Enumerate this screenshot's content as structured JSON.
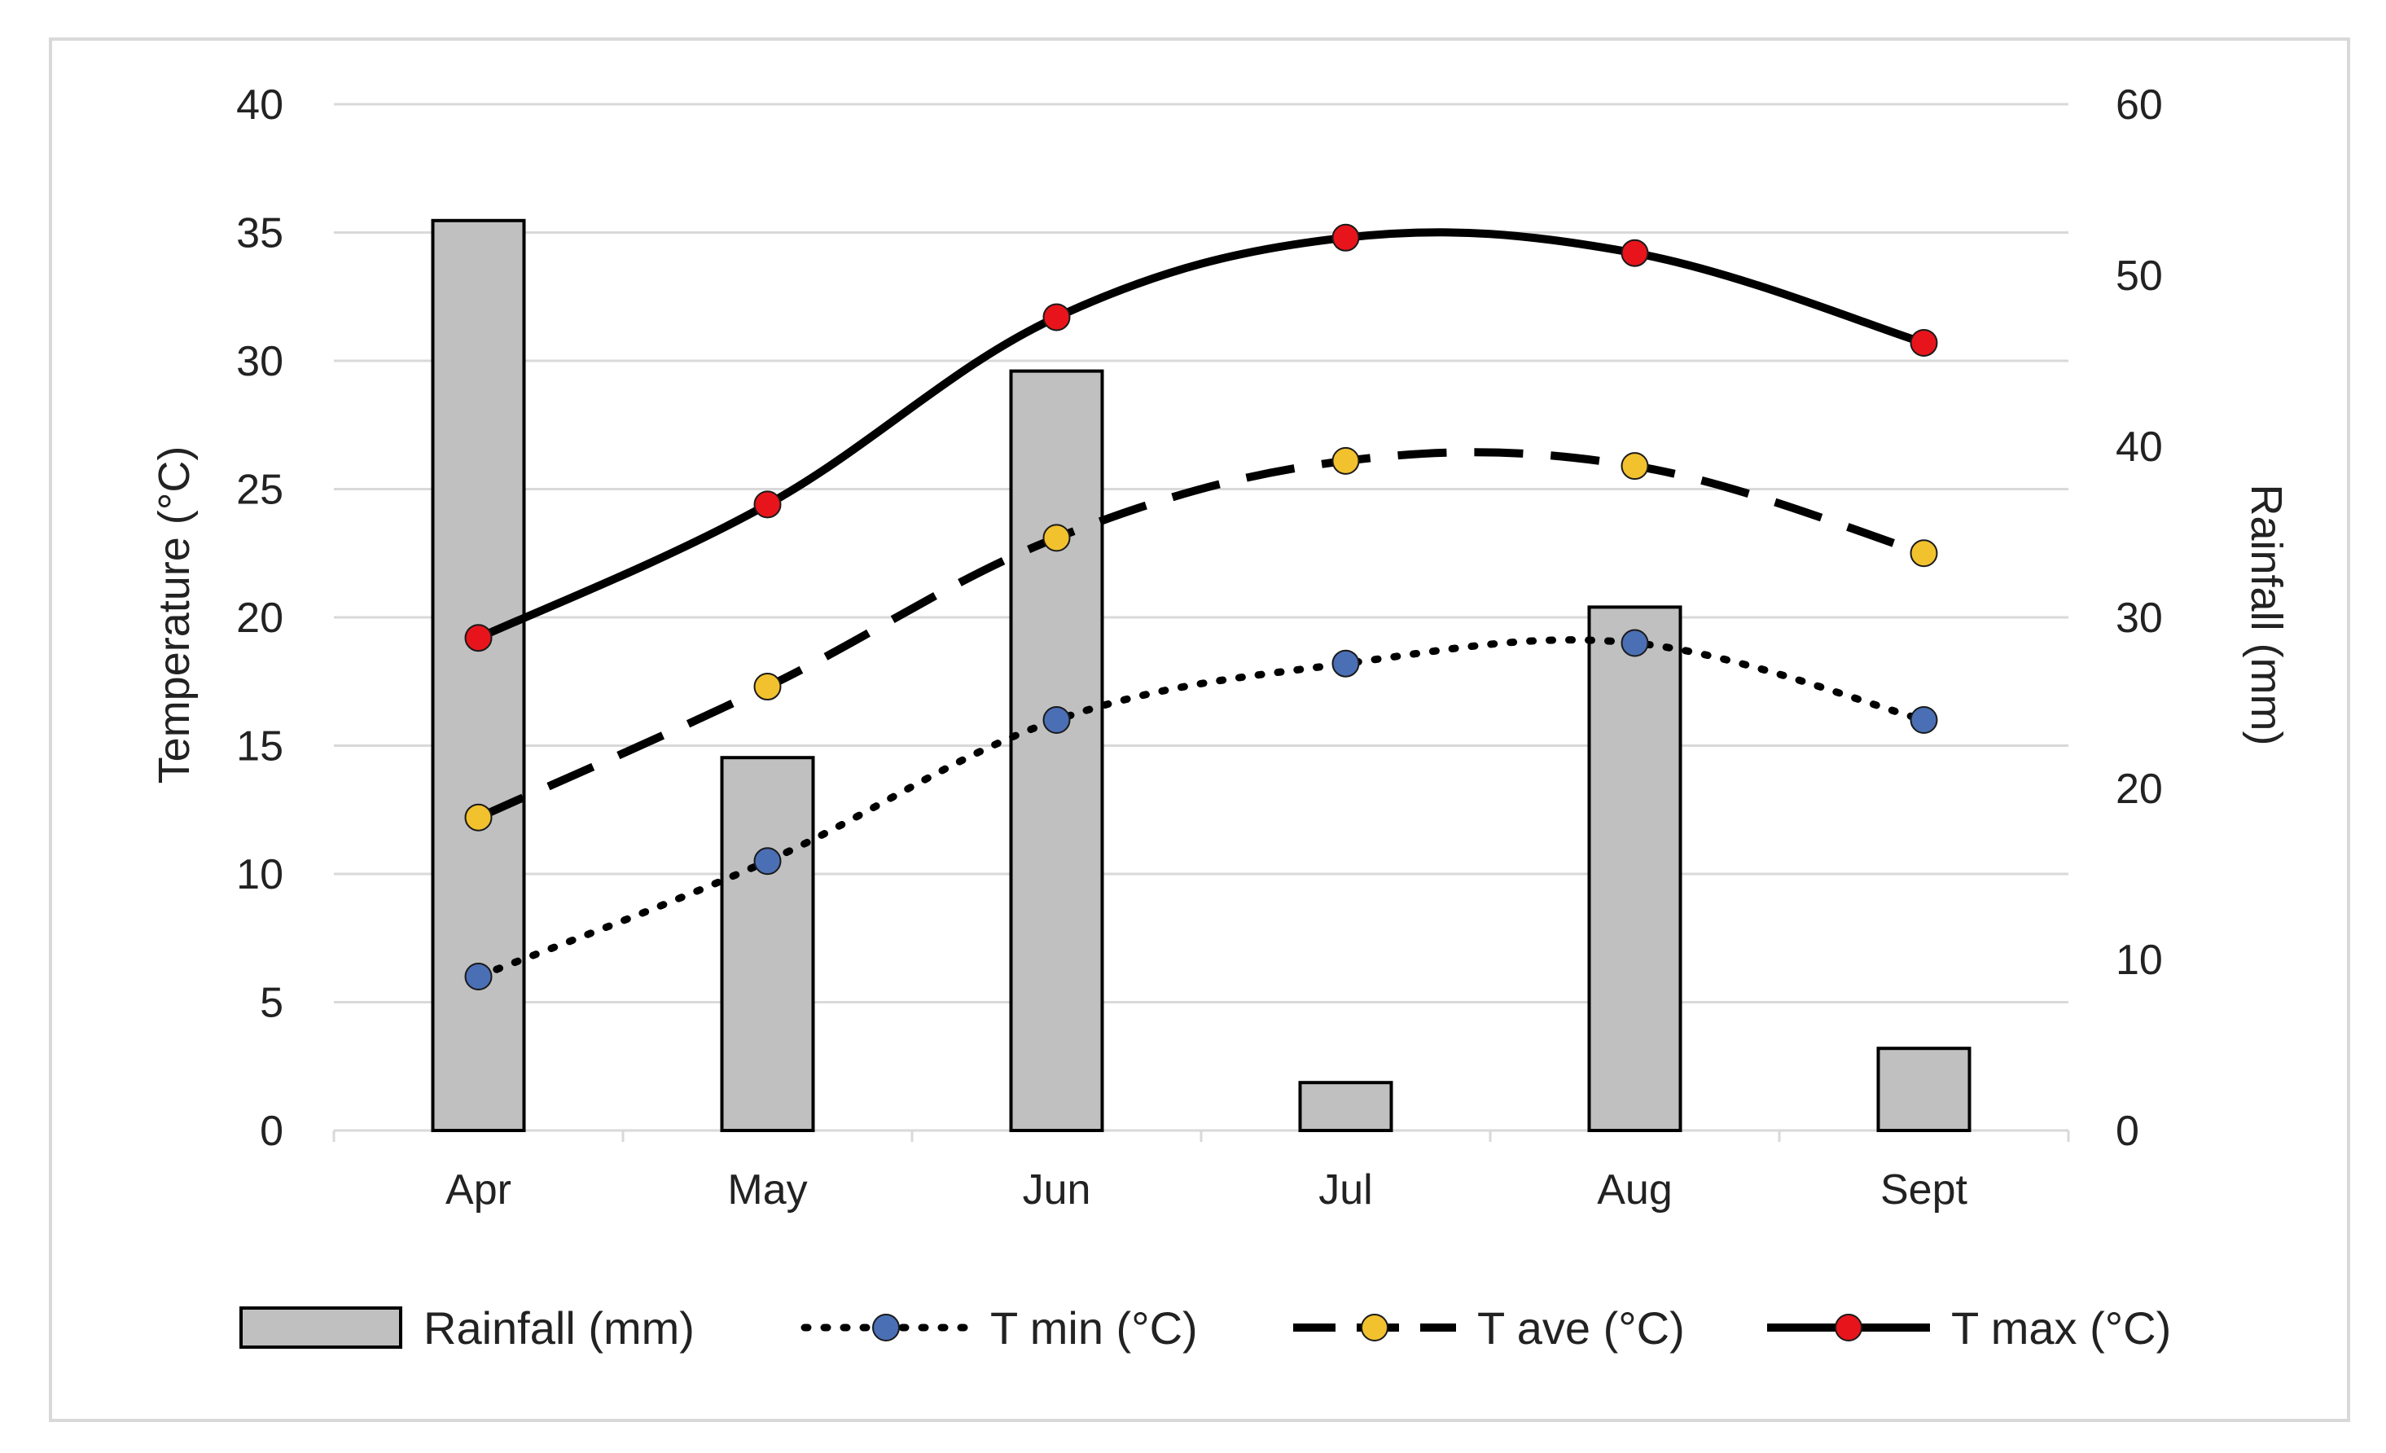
{
  "chart_data": {
    "type": "bar+line",
    "title": "",
    "categories": [
      "Apr",
      "May",
      "Jun",
      "Jul",
      "Aug",
      "Sept"
    ],
    "left_axis": {
      "label": "Temperature  (°C)",
      "range": [
        0,
        40
      ],
      "ticks": [
        0,
        5,
        10,
        15,
        20,
        25,
        30,
        35,
        40
      ]
    },
    "right_axis": {
      "label": "Rainfall (mm)",
      "range": [
        0,
        60
      ],
      "ticks": [
        0,
        10,
        20,
        30,
        40,
        50,
        60
      ]
    },
    "grid": true,
    "legend_position": "bottom",
    "series": [
      {
        "name": "Rainfall (mm)",
        "kind": "bar",
        "axis": "right",
        "color": "#c0c0c0",
        "values": [
          53.2,
          21.8,
          44.4,
          2.8,
          30.6,
          4.8
        ]
      },
      {
        "name": "T min (°C)",
        "kind": "line",
        "axis": "left",
        "style": "dotted",
        "marker_color": "#4a6fb5",
        "values": [
          6,
          10.5,
          16,
          18.2,
          19,
          16
        ]
      },
      {
        "name": "T ave (°C)",
        "kind": "line",
        "axis": "left",
        "style": "dashed",
        "marker_color": "#f2c12e",
        "values": [
          12.2,
          17.3,
          23.1,
          26.1,
          25.9,
          22.5
        ]
      },
      {
        "name": "T max (°C)",
        "kind": "line",
        "axis": "left",
        "style": "solid",
        "marker_color": "#e8141b",
        "values": [
          19.2,
          24.4,
          31.7,
          34.8,
          34.2,
          30.7
        ]
      }
    ]
  }
}
